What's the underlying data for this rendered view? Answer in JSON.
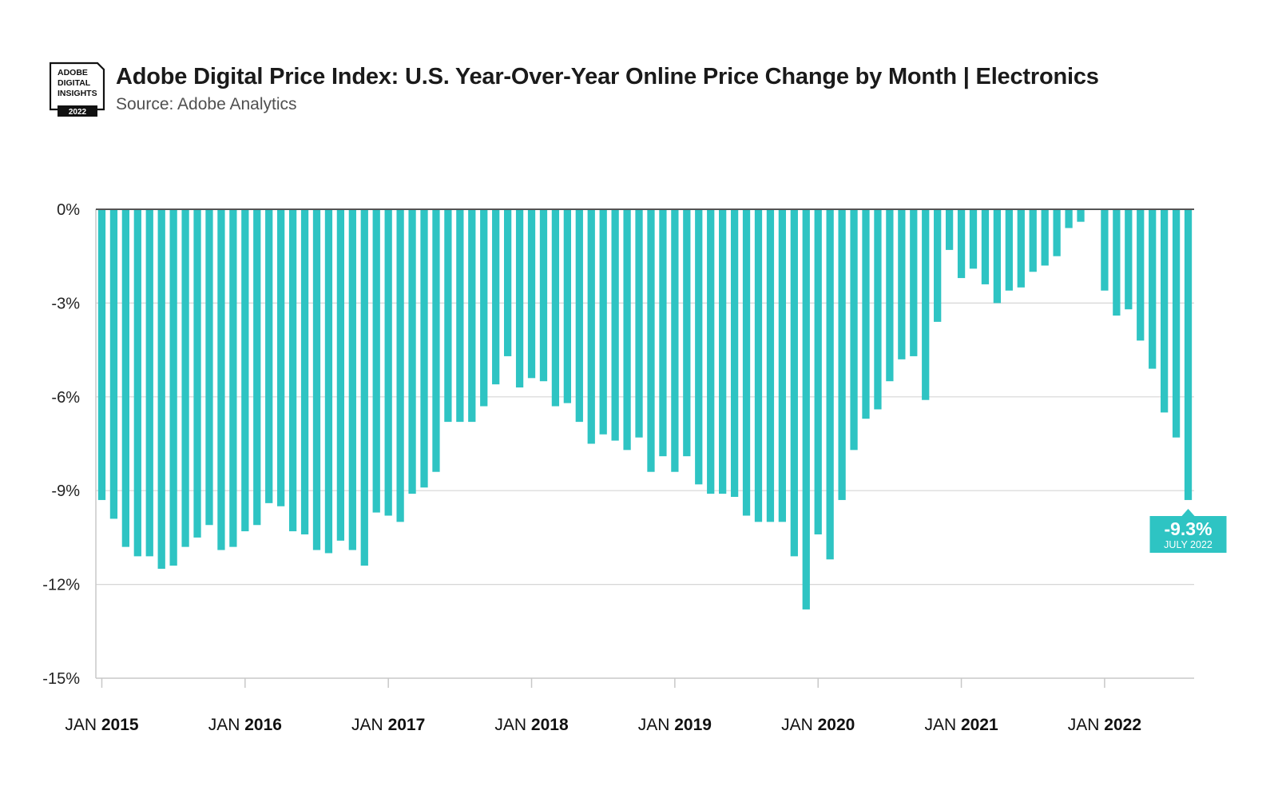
{
  "header": {
    "title": "Adobe Digital Price Index: U.S. Year-Over-Year Online Price Change by Month  |  Electronics",
    "subtitle": "Source: Adobe Analytics"
  },
  "logo": {
    "lines": [
      "ADOBE",
      "DIGITAL",
      "INSIGHTS"
    ],
    "year": "2022"
  },
  "colors": {
    "bar": "#2ec4c3",
    "axis": "#c8c8c8",
    "grid": "#d6d6d6",
    "callout": "#2ec4c3"
  },
  "chart_data": {
    "type": "bar",
    "title": "Adobe Digital Price Index: U.S. Year-Over-Year Online Price Change by Month | Electronics",
    "xlabel": "",
    "ylabel": "",
    "ylim": [
      -15,
      0
    ],
    "yticks": [
      0,
      -3,
      -6,
      -9,
      -12,
      -15
    ],
    "ytick_labels": [
      "0%",
      "-3%",
      "-6%",
      "-9%",
      "-12%",
      "-15%"
    ],
    "grid": true,
    "x_major_labels": [
      {
        "prefix": "JAN",
        "year": "2015"
      },
      {
        "prefix": "JAN",
        "year": "2016"
      },
      {
        "prefix": "JAN",
        "year": "2017"
      },
      {
        "prefix": "JAN",
        "year": "2018"
      },
      {
        "prefix": "JAN",
        "year": "2019"
      },
      {
        "prefix": "JAN",
        "year": "2020"
      },
      {
        "prefix": "JAN",
        "year": "2021"
      },
      {
        "prefix": "JAN",
        "year": "2022"
      }
    ],
    "start": "2015-01",
    "end": "2022-07",
    "values": [
      -9.3,
      -9.9,
      -10.8,
      -11.1,
      -11.1,
      -11.5,
      -11.4,
      -10.8,
      -10.5,
      -10.1,
      -10.9,
      -10.8,
      -10.3,
      -10.1,
      -9.4,
      -9.5,
      -10.3,
      -10.4,
      -10.9,
      -11.0,
      -10.6,
      -10.9,
      -11.4,
      -9.7,
      -9.8,
      -10.0,
      -9.1,
      -8.9,
      -8.4,
      -6.8,
      -6.8,
      -6.8,
      -6.3,
      -5.6,
      -4.7,
      -5.7,
      -5.4,
      -5.5,
      -6.3,
      -6.2,
      -6.8,
      -7.5,
      -7.2,
      -7.4,
      -7.7,
      -7.3,
      -8.4,
      -7.9,
      -8.4,
      -7.9,
      -8.8,
      -9.1,
      -9.1,
      -9.2,
      -9.8,
      -10.0,
      -10.0,
      -10.0,
      -11.1,
      -12.8,
      -10.4,
      -11.2,
      -9.3,
      -7.7,
      -6.7,
      -6.4,
      -5.5,
      -4.8,
      -4.7,
      -6.1,
      -3.6,
      -1.3,
      -2.2,
      -1.9,
      -2.4,
      -3.0,
      -2.6,
      -2.5,
      -2.0,
      -1.8,
      -1.5,
      -0.6,
      -0.4,
      0.0,
      -2.6,
      -3.4,
      -3.2,
      -4.2,
      -5.1,
      -6.5,
      -7.3,
      -9.3
    ],
    "annotation": {
      "value_label": "-9.3%",
      "date_label": "JULY 2022",
      "value": -9.3
    }
  }
}
